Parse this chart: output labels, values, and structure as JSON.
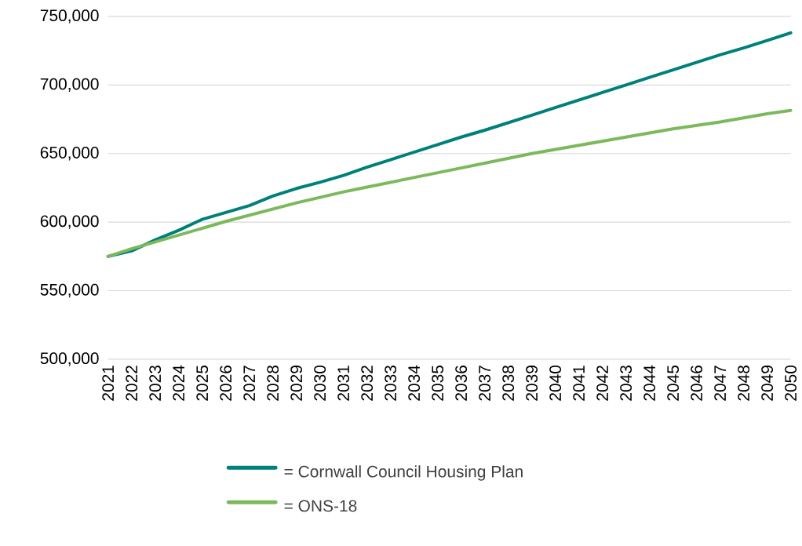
{
  "chart_data": {
    "type": "line",
    "categories": [
      "2021",
      "2022",
      "2023",
      "2024",
      "2025",
      "2026",
      "2027",
      "2028",
      "2029",
      "2030",
      "2031",
      "2032",
      "2033",
      "2034",
      "2035",
      "2036",
      "2037",
      "2038",
      "2039",
      "2040",
      "2041",
      "2042",
      "2043",
      "2044",
      "2045",
      "2046",
      "2047",
      "2048",
      "2049",
      "2050"
    ],
    "series": [
      {
        "name": "= Cornwall Council Housing Plan",
        "color": "#00807a",
        "values": [
          575000,
          579000,
          587000,
          594000,
          602000,
          607000,
          612000,
          619000,
          624500,
          629000,
          634000,
          640000,
          645500,
          651000,
          656500,
          662000,
          667000,
          672500,
          678000,
          683500,
          689000,
          694500,
          700000,
          705500,
          711000,
          716500,
          722000,
          727000,
          732500,
          738000
        ]
      },
      {
        "name": "= ONS-18",
        "color": "#7cb95c",
        "values": [
          575000,
          580500,
          585500,
          590500,
          595500,
          600500,
          605000,
          609500,
          614000,
          618000,
          622000,
          625500,
          629000,
          632500,
          636000,
          639500,
          643000,
          646500,
          650000,
          653000,
          656000,
          659000,
          662000,
          665000,
          668000,
          670500,
          673000,
          676000,
          679000,
          681500
        ]
      }
    ],
    "ylim": [
      500000,
      750000
    ],
    "yticks": [
      {
        "value": 500000,
        "label": "500,000"
      },
      {
        "value": 550000,
        "label": "550,000"
      },
      {
        "value": 600000,
        "label": "600,000"
      },
      {
        "value": 650000,
        "label": "650,000"
      },
      {
        "value": 700000,
        "label": "700,000"
      },
      {
        "value": 750000,
        "label": "750,000"
      }
    ],
    "grid": "y",
    "legend": "bottom",
    "marker": "none",
    "line_style": "solid"
  }
}
